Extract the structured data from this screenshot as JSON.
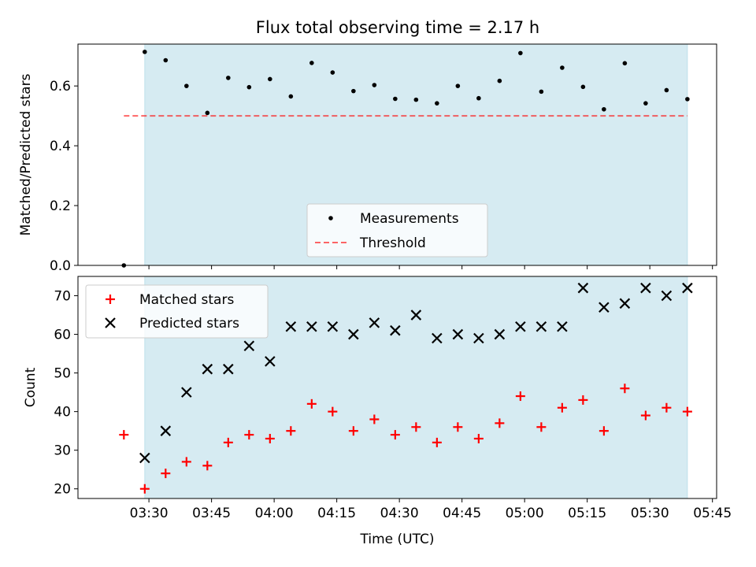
{
  "title": "Flux total observing time = 2.17 h",
  "colors": {
    "shade": "#add8e6",
    "threshold": "#ff0000",
    "measurement": "#000000",
    "matched": "#ff0000",
    "predicted": "#000000"
  },
  "chart_data": [
    {
      "type": "scatter",
      "ylabel": "Matched/Predicted stars",
      "ylim": [
        0,
        0.74
      ],
      "yticks": [
        "0.0",
        "0.2",
        "0.4",
        "0.6"
      ],
      "ytick_values": [
        0,
        0.2,
        0.4,
        0.6
      ],
      "xlim": [
        "03:13",
        "05:46"
      ],
      "shaded_span": [
        "03:29",
        "05:39"
      ],
      "legend_position": "lower-center",
      "series": [
        {
          "name": "Measurements",
          "marker": "dot",
          "points": [
            {
              "x": "03:24",
              "y": 0.0
            },
            {
              "x": "03:29",
              "y": 0.714
            },
            {
              "x": "03:34",
              "y": 0.686
            },
            {
              "x": "03:39",
              "y": 0.6
            },
            {
              "x": "03:44",
              "y": 0.51
            },
            {
              "x": "03:49",
              "y": 0.627
            },
            {
              "x": "03:54",
              "y": 0.596
            },
            {
              "x": "03:59",
              "y": 0.623
            },
            {
              "x": "04:04",
              "y": 0.565
            },
            {
              "x": "04:09",
              "y": 0.677
            },
            {
              "x": "04:14",
              "y": 0.645
            },
            {
              "x": "04:19",
              "y": 0.583
            },
            {
              "x": "04:24",
              "y": 0.603
            },
            {
              "x": "04:29",
              "y": 0.557
            },
            {
              "x": "04:34",
              "y": 0.554
            },
            {
              "x": "04:39",
              "y": 0.542
            },
            {
              "x": "04:44",
              "y": 0.6
            },
            {
              "x": "04:49",
              "y": 0.559
            },
            {
              "x": "04:54",
              "y": 0.617
            },
            {
              "x": "04:59",
              "y": 0.71
            },
            {
              "x": "05:04",
              "y": 0.581
            },
            {
              "x": "05:09",
              "y": 0.661
            },
            {
              "x": "05:14",
              "y": 0.597
            },
            {
              "x": "05:19",
              "y": 0.522
            },
            {
              "x": "05:24",
              "y": 0.676
            },
            {
              "x": "05:29",
              "y": 0.542
            },
            {
              "x": "05:34",
              "y": 0.586
            },
            {
              "x": "05:39",
              "y": 0.556
            }
          ]
        },
        {
          "name": "Threshold",
          "marker": "dashed-line",
          "points": [
            {
              "x": "03:24",
              "y": 0.5
            },
            {
              "x": "05:39",
              "y": 0.5
            }
          ]
        }
      ]
    },
    {
      "type": "scatter",
      "ylabel": "Count",
      "xlabel": "Time (UTC)",
      "ylim": [
        17.5,
        75
      ],
      "yticks": [
        "20",
        "30",
        "40",
        "50",
        "60",
        "70"
      ],
      "ytick_values": [
        20,
        30,
        40,
        50,
        60,
        70
      ],
      "xlim": [
        "03:13",
        "05:46"
      ],
      "xticks": [
        "03:30",
        "03:45",
        "04:00",
        "04:15",
        "04:30",
        "04:45",
        "05:00",
        "05:15",
        "05:30",
        "05:45"
      ],
      "shaded_span": [
        "03:29",
        "05:39"
      ],
      "legend_position": "top-left",
      "series": [
        {
          "name": "Matched stars",
          "marker": "plus",
          "points": [
            {
              "x": "03:24",
              "y": 34
            },
            {
              "x": "03:29",
              "y": 20
            },
            {
              "x": "03:34",
              "y": 24
            },
            {
              "x": "03:39",
              "y": 27
            },
            {
              "x": "03:44",
              "y": 26
            },
            {
              "x": "03:49",
              "y": 32
            },
            {
              "x": "03:54",
              "y": 34
            },
            {
              "x": "03:59",
              "y": 33
            },
            {
              "x": "04:04",
              "y": 35
            },
            {
              "x": "04:09",
              "y": 42
            },
            {
              "x": "04:14",
              "y": 40
            },
            {
              "x": "04:19",
              "y": 35
            },
            {
              "x": "04:24",
              "y": 38
            },
            {
              "x": "04:29",
              "y": 34
            },
            {
              "x": "04:34",
              "y": 36
            },
            {
              "x": "04:39",
              "y": 32
            },
            {
              "x": "04:44",
              "y": 36
            },
            {
              "x": "04:49",
              "y": 33
            },
            {
              "x": "04:54",
              "y": 37
            },
            {
              "x": "04:59",
              "y": 44
            },
            {
              "x": "05:04",
              "y": 36
            },
            {
              "x": "05:09",
              "y": 41
            },
            {
              "x": "05:14",
              "y": 43
            },
            {
              "x": "05:19",
              "y": 35
            },
            {
              "x": "05:24",
              "y": 46
            },
            {
              "x": "05:29",
              "y": 39
            },
            {
              "x": "05:34",
              "y": 41
            },
            {
              "x": "05:39",
              "y": 40
            }
          ]
        },
        {
          "name": "Predicted stars",
          "marker": "x",
          "points": [
            {
              "x": "03:29",
              "y": 28
            },
            {
              "x": "03:34",
              "y": 35
            },
            {
              "x": "03:39",
              "y": 45
            },
            {
              "x": "03:44",
              "y": 51
            },
            {
              "x": "03:49",
              "y": 51
            },
            {
              "x": "03:54",
              "y": 57
            },
            {
              "x": "03:59",
              "y": 53
            },
            {
              "x": "04:04",
              "y": 62
            },
            {
              "x": "04:09",
              "y": 62
            },
            {
              "x": "04:14",
              "y": 62
            },
            {
              "x": "04:19",
              "y": 60
            },
            {
              "x": "04:24",
              "y": 63
            },
            {
              "x": "04:29",
              "y": 61
            },
            {
              "x": "04:34",
              "y": 65
            },
            {
              "x": "04:39",
              "y": 59
            },
            {
              "x": "04:44",
              "y": 60
            },
            {
              "x": "04:49",
              "y": 59
            },
            {
              "x": "04:54",
              "y": 60
            },
            {
              "x": "04:59",
              "y": 62
            },
            {
              "x": "05:04",
              "y": 62
            },
            {
              "x": "05:09",
              "y": 62
            },
            {
              "x": "05:14",
              "y": 72
            },
            {
              "x": "05:19",
              "y": 67
            },
            {
              "x": "05:24",
              "y": 68
            },
            {
              "x": "05:29",
              "y": 72
            },
            {
              "x": "05:34",
              "y": 70
            },
            {
              "x": "05:39",
              "y": 72
            }
          ]
        }
      ]
    }
  ]
}
